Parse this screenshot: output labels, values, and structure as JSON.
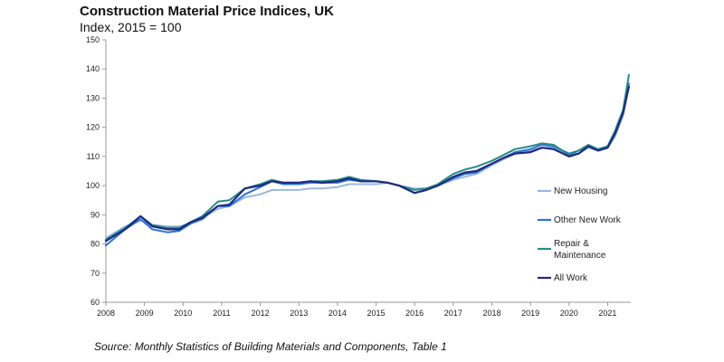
{
  "chart_data": {
    "type": "line",
    "title": "Construction Material Price Indices, UK",
    "subtitle": "Index, 2015 = 100",
    "xlabel": "",
    "ylabel": "",
    "xlim": [
      2008,
      2021.6
    ],
    "ylim": [
      60,
      150
    ],
    "x_ticks": [
      "2008",
      "2009",
      "2010",
      "2011",
      "2012",
      "2013",
      "2014",
      "2015",
      "2016",
      "2017",
      "2018",
      "2019",
      "2020",
      "2021"
    ],
    "y_ticks": [
      60,
      70,
      80,
      90,
      100,
      110,
      120,
      130,
      140,
      150
    ],
    "grid": false,
    "legend_position": "right",
    "source": "Source: Monthly Statistics of Building Materials and Components, Table 1",
    "series": [
      {
        "name": "New Housing",
        "legend_label": [
          "New Housing"
        ],
        "color": "#9bb7e0",
        "x": [
          2008,
          2008.5,
          2008.9,
          2009.2,
          2009.6,
          2009.9,
          2010.2,
          2010.5,
          2010.9,
          2011.2,
          2011.6,
          2012.0,
          2012.3,
          2012.6,
          2013.0,
          2013.3,
          2013.6,
          2014.0,
          2014.3,
          2014.6,
          2015.0,
          2015.3,
          2015.6,
          2016.0,
          2016.3,
          2016.6,
          2017.0,
          2017.3,
          2017.6,
          2018.0,
          2018.3,
          2018.6,
          2019.0,
          2019.3,
          2019.6,
          2020.0,
          2020.25,
          2020.5,
          2020.75,
          2021.0,
          2021.2,
          2021.4,
          2021.55
        ],
        "values": [
          82,
          86,
          88,
          86.5,
          86,
          86,
          87,
          89,
          92,
          93,
          96,
          97,
          98.5,
          98.5,
          98.5,
          99,
          99,
          99.5,
          100.5,
          100.5,
          100.5,
          101,
          100,
          99,
          99,
          100,
          102,
          103,
          104,
          107,
          109,
          111,
          112,
          113,
          113,
          111,
          111,
          113,
          112,
          113,
          117,
          124,
          134
        ]
      },
      {
        "name": "Other New Work",
        "legend_label": [
          "Other New Work"
        ],
        "color": "#2e74d6",
        "x": [
          2008,
          2008.5,
          2008.9,
          2009.2,
          2009.6,
          2009.9,
          2010.2,
          2010.5,
          2010.9,
          2011.2,
          2011.6,
          2012.0,
          2012.3,
          2012.6,
          2013.0,
          2013.3,
          2013.6,
          2014.0,
          2014.3,
          2014.6,
          2015.0,
          2015.3,
          2015.6,
          2016.0,
          2016.3,
          2016.6,
          2017.0,
          2017.3,
          2017.6,
          2018.0,
          2018.3,
          2018.6,
          2019.0,
          2019.3,
          2019.6,
          2020.0,
          2020.25,
          2020.5,
          2020.75,
          2021.0,
          2021.2,
          2021.4,
          2021.55
        ],
        "values": [
          79.5,
          85,
          88.5,
          85,
          84,
          84.5,
          87,
          88.5,
          93,
          93,
          97,
          99.5,
          101.5,
          100.5,
          100.5,
          101,
          101,
          101,
          102,
          101.5,
          101.5,
          101,
          100,
          97.5,
          98.5,
          100,
          102.5,
          104,
          104.5,
          107.5,
          109.5,
          111.5,
          112.5,
          114,
          113.5,
          111,
          112,
          113.5,
          112,
          113,
          118,
          125,
          135
        ]
      },
      {
        "name": "Repair & Maintenance",
        "legend_label": [
          "Repair &",
          "Maintenance"
        ],
        "color": "#2a8a8a",
        "x": [
          2008,
          2008.5,
          2008.9,
          2009.2,
          2009.6,
          2009.9,
          2010.2,
          2010.5,
          2010.9,
          2011.2,
          2011.6,
          2012.0,
          2012.3,
          2012.6,
          2013.0,
          2013.3,
          2013.6,
          2014.0,
          2014.3,
          2014.6,
          2015.0,
          2015.3,
          2015.6,
          2016.0,
          2016.3,
          2016.6,
          2017.0,
          2017.3,
          2017.6,
          2018.0,
          2018.3,
          2018.6,
          2019.0,
          2019.3,
          2019.6,
          2020.0,
          2020.25,
          2020.5,
          2020.75,
          2021.0,
          2021.2,
          2021.4,
          2021.55
        ],
        "values": [
          81.5,
          85.5,
          89.5,
          86.5,
          85.5,
          85.5,
          87.5,
          89.5,
          94.5,
          95,
          99,
          100.5,
          102,
          101,
          101,
          101.5,
          101.5,
          102,
          103,
          102,
          101.5,
          101,
          100,
          98.5,
          99,
          100.5,
          104,
          105.5,
          106.5,
          108.5,
          110.5,
          112.5,
          113.5,
          114.5,
          114,
          110.5,
          112,
          114,
          112.5,
          113.5,
          119,
          126,
          138
        ]
      },
      {
        "name": "All Work",
        "legend_label": [
          "All Work"
        ],
        "color": "#1c2a80",
        "x": [
          2008,
          2008.5,
          2008.9,
          2009.2,
          2009.6,
          2009.9,
          2010.2,
          2010.5,
          2010.9,
          2011.2,
          2011.6,
          2012.0,
          2012.3,
          2012.6,
          2013.0,
          2013.3,
          2013.6,
          2014.0,
          2014.3,
          2014.6,
          2015.0,
          2015.3,
          2015.6,
          2016.0,
          2016.3,
          2016.6,
          2017.0,
          2017.3,
          2017.6,
          2018.0,
          2018.3,
          2018.6,
          2019.0,
          2019.3,
          2019.6,
          2020.0,
          2020.25,
          2020.5,
          2020.75,
          2021.0,
          2021.2,
          2021.4,
          2021.55
        ],
        "values": [
          81,
          85,
          89.5,
          86,
          85,
          85,
          87.5,
          89,
          93,
          93.5,
          99,
          100,
          101.5,
          101,
          101,
          101.5,
          101,
          101.5,
          102.5,
          101.5,
          101.5,
          101,
          100,
          97.5,
          98.5,
          100,
          103,
          104.5,
          105,
          107.5,
          109.5,
          111,
          111.5,
          113,
          112.5,
          110,
          111,
          113.5,
          112,
          113,
          118,
          125,
          134
        ]
      }
    ]
  }
}
